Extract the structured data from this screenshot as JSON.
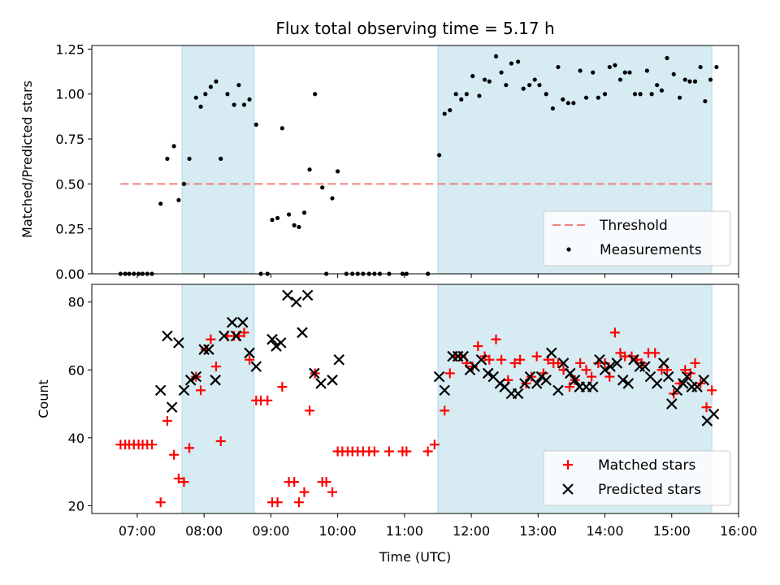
{
  "chart_data": [
    {
      "type": "scatter",
      "title": "Flux total observing time = 5.17 h",
      "ylabel": "Matched/Predicted stars",
      "ylim": [
        0,
        1.27
      ],
      "yticks": [
        "0.00",
        "0.25",
        "0.50",
        "0.75",
        "1.00",
        "1.25"
      ],
      "ytick_values": [
        0,
        0.25,
        0.5,
        0.75,
        1.0,
        1.25
      ],
      "xlim_hours": [
        6.32,
        16.0
      ],
      "shaded_intervals_hours": [
        [
          7.67,
          8.75
        ],
        [
          11.5,
          15.6
        ]
      ],
      "shade_color": "#add8e6",
      "threshold": {
        "label": "Threshold",
        "value": 0.5,
        "x_range_hours": [
          6.75,
          15.6
        ],
        "color": "#f08080"
      },
      "measurements_label": "Measurements",
      "measurements": [
        [
          6.75,
          0
        ],
        [
          6.82,
          0
        ],
        [
          6.88,
          0
        ],
        [
          6.95,
          0
        ],
        [
          7.02,
          0
        ],
        [
          7.08,
          0
        ],
        [
          7.15,
          0
        ],
        [
          7.22,
          0
        ],
        [
          7.35,
          0.39
        ],
        [
          7.45,
          0.64
        ],
        [
          7.55,
          0.71
        ],
        [
          7.62,
          0.41
        ],
        [
          7.7,
          0.5
        ],
        [
          7.78,
          0.64
        ],
        [
          7.88,
          0.98
        ],
        [
          7.95,
          0.93
        ],
        [
          8.02,
          1.0
        ],
        [
          8.1,
          1.04
        ],
        [
          8.18,
          1.07
        ],
        [
          8.25,
          0.64
        ],
        [
          8.35,
          1.0
        ],
        [
          8.45,
          0.94
        ],
        [
          8.52,
          1.05
        ],
        [
          8.6,
          0.94
        ],
        [
          8.68,
          0.97
        ],
        [
          8.78,
          0.83
        ],
        [
          8.85,
          0
        ],
        [
          8.95,
          0
        ],
        [
          9.02,
          0.3
        ],
        [
          9.1,
          0.31
        ],
        [
          9.17,
          0.81
        ],
        [
          9.27,
          0.33
        ],
        [
          9.35,
          0.27
        ],
        [
          9.42,
          0.26
        ],
        [
          9.5,
          0.34
        ],
        [
          9.58,
          0.58
        ],
        [
          9.66,
          1.0
        ],
        [
          9.77,
          0.48
        ],
        [
          9.83,
          0
        ],
        [
          9.92,
          0.42
        ],
        [
          10.0,
          0.57
        ],
        [
          10.13,
          0
        ],
        [
          10.22,
          0
        ],
        [
          10.3,
          0
        ],
        [
          10.38,
          0
        ],
        [
          10.47,
          0
        ],
        [
          10.55,
          0
        ],
        [
          10.63,
          0
        ],
        [
          10.77,
          0
        ],
        [
          10.97,
          0
        ],
        [
          11.03,
          0
        ],
        [
          11.35,
          0
        ],
        [
          11.52,
          0.66
        ],
        [
          11.6,
          0.89
        ],
        [
          11.68,
          0.91
        ],
        [
          11.77,
          1.0
        ],
        [
          11.85,
          0.97
        ],
        [
          11.93,
          1.0
        ],
        [
          12.02,
          1.1
        ],
        [
          12.12,
          0.99
        ],
        [
          12.2,
          1.08
        ],
        [
          12.27,
          1.07
        ],
        [
          12.37,
          1.21
        ],
        [
          12.45,
          1.12
        ],
        [
          12.52,
          1.05
        ],
        [
          12.6,
          1.17
        ],
        [
          12.7,
          1.18
        ],
        [
          12.78,
          1.03
        ],
        [
          12.87,
          1.05
        ],
        [
          12.95,
          1.08
        ],
        [
          13.02,
          1.05
        ],
        [
          13.12,
          1.0
        ],
        [
          13.22,
          0.92
        ],
        [
          13.3,
          1.15
        ],
        [
          13.37,
          0.97
        ],
        [
          13.45,
          0.95
        ],
        [
          13.53,
          0.95
        ],
        [
          13.63,
          1.13
        ],
        [
          13.72,
          0.98
        ],
        [
          13.82,
          1.12
        ],
        [
          13.9,
          0.98
        ],
        [
          14.0,
          1.0
        ],
        [
          14.07,
          1.15
        ],
        [
          14.15,
          1.16
        ],
        [
          14.23,
          1.08
        ],
        [
          14.3,
          1.12
        ],
        [
          14.37,
          1.12
        ],
        [
          14.45,
          1.0
        ],
        [
          14.53,
          1.0
        ],
        [
          14.63,
          1.13
        ],
        [
          14.7,
          1.0
        ],
        [
          14.78,
          1.05
        ],
        [
          14.85,
          1.02
        ],
        [
          14.93,
          1.2
        ],
        [
          15.03,
          1.11
        ],
        [
          15.12,
          0.98
        ],
        [
          15.2,
          1.08
        ],
        [
          15.27,
          1.07
        ],
        [
          15.35,
          1.07
        ],
        [
          15.43,
          1.15
        ],
        [
          15.5,
          0.96
        ],
        [
          15.58,
          1.08
        ],
        [
          15.67,
          1.15
        ]
      ]
    },
    {
      "type": "scatter",
      "ylabel": "Count",
      "xlabel": "Time (UTC)",
      "ylim": [
        17.7,
        85.2
      ],
      "yticks": [
        "20",
        "40",
        "60",
        "80"
      ],
      "ytick_values": [
        20,
        40,
        60,
        80
      ],
      "xlim_hours": [
        6.32,
        16.0
      ],
      "xticks": [
        "07:00",
        "08:00",
        "09:00",
        "10:00",
        "11:00",
        "12:00",
        "13:00",
        "14:00",
        "15:00",
        "16:00"
      ],
      "xtick_values": [
        7,
        8,
        9,
        10,
        11,
        12,
        13,
        14,
        15,
        16
      ],
      "shaded_intervals_hours": [
        [
          7.67,
          8.75
        ],
        [
          11.5,
          15.6
        ]
      ],
      "shade_color": "#add8e6",
      "series": [
        {
          "name": "Matched stars",
          "marker": "plus",
          "color": "#ff0000",
          "points": [
            [
              6.75,
              38
            ],
            [
              6.82,
              38
            ],
            [
              6.88,
              38
            ],
            [
              6.95,
              38
            ],
            [
              7.02,
              38
            ],
            [
              7.08,
              38
            ],
            [
              7.15,
              38
            ],
            [
              7.22,
              38
            ],
            [
              7.35,
              21
            ],
            [
              7.45,
              45
            ],
            [
              7.55,
              35
            ],
            [
              7.62,
              28
            ],
            [
              7.7,
              27
            ],
            [
              7.78,
              37
            ],
            [
              7.88,
              58
            ],
            [
              7.95,
              54
            ],
            [
              8.02,
              66
            ],
            [
              8.1,
              69
            ],
            [
              8.18,
              61
            ],
            [
              8.25,
              39
            ],
            [
              8.35,
              70
            ],
            [
              8.45,
              70
            ],
            [
              8.52,
              70
            ],
            [
              8.6,
              71
            ],
            [
              8.68,
              63
            ],
            [
              8.78,
              51
            ],
            [
              8.85,
              51
            ],
            [
              8.95,
              51
            ],
            [
              9.02,
              21
            ],
            [
              9.1,
              21
            ],
            [
              9.17,
              55
            ],
            [
              9.27,
              27
            ],
            [
              9.35,
              27
            ],
            [
              9.42,
              21
            ],
            [
              9.5,
              24
            ],
            [
              9.58,
              48
            ],
            [
              9.66,
              59
            ],
            [
              9.77,
              27
            ],
            [
              9.83,
              27
            ],
            [
              9.92,
              24
            ],
            [
              10.0,
              36
            ],
            [
              10.07,
              36
            ],
            [
              10.15,
              36
            ],
            [
              10.22,
              36
            ],
            [
              10.3,
              36
            ],
            [
              10.38,
              36
            ],
            [
              10.47,
              36
            ],
            [
              10.55,
              36
            ],
            [
              10.77,
              36
            ],
            [
              10.97,
              36
            ],
            [
              11.03,
              36
            ],
            [
              11.35,
              36
            ],
            [
              11.45,
              38
            ],
            [
              11.6,
              48
            ],
            [
              11.68,
              59
            ],
            [
              11.77,
              64
            ],
            [
              11.85,
              64
            ],
            [
              11.93,
              62
            ],
            [
              12.02,
              61
            ],
            [
              12.1,
              67
            ],
            [
              12.2,
              64
            ],
            [
              12.27,
              63
            ],
            [
              12.37,
              69
            ],
            [
              12.45,
              63
            ],
            [
              12.55,
              57
            ],
            [
              12.65,
              62
            ],
            [
              12.73,
              63
            ],
            [
              12.82,
              56
            ],
            [
              12.9,
              58
            ],
            [
              12.98,
              64
            ],
            [
              13.08,
              59
            ],
            [
              13.15,
              63
            ],
            [
              13.23,
              62
            ],
            [
              13.3,
              62
            ],
            [
              13.38,
              60
            ],
            [
              13.47,
              55
            ],
            [
              13.55,
              57
            ],
            [
              13.63,
              62
            ],
            [
              13.72,
              60
            ],
            [
              13.8,
              58
            ],
            [
              13.9,
              62
            ],
            [
              14.0,
              62
            ],
            [
              14.07,
              58
            ],
            [
              14.15,
              71
            ],
            [
              14.23,
              65
            ],
            [
              14.3,
              64
            ],
            [
              14.4,
              64
            ],
            [
              14.48,
              63
            ],
            [
              14.55,
              62
            ],
            [
              14.65,
              65
            ],
            [
              14.75,
              65
            ],
            [
              14.85,
              60
            ],
            [
              14.93,
              60
            ],
            [
              15.03,
              53
            ],
            [
              15.12,
              56
            ],
            [
              15.2,
              60
            ],
            [
              15.28,
              59
            ],
            [
              15.35,
              62
            ],
            [
              15.43,
              56
            ],
            [
              15.52,
              49
            ],
            [
              15.6,
              54
            ]
          ]
        },
        {
          "name": "Predicted stars",
          "marker": "x",
          "color": "#000000",
          "points": [
            [
              7.35,
              54
            ],
            [
              7.45,
              70
            ],
            [
              7.52,
              49
            ],
            [
              7.62,
              68
            ],
            [
              7.7,
              54
            ],
            [
              7.8,
              57
            ],
            [
              7.88,
              58
            ],
            [
              8.0,
              66
            ],
            [
              8.07,
              66
            ],
            [
              8.17,
              57
            ],
            [
              8.3,
              70
            ],
            [
              8.42,
              74
            ],
            [
              8.48,
              70
            ],
            [
              8.58,
              74
            ],
            [
              8.68,
              65
            ],
            [
              8.78,
              61
            ],
            [
              9.02,
              69
            ],
            [
              9.08,
              67
            ],
            [
              9.15,
              68
            ],
            [
              9.25,
              82
            ],
            [
              9.38,
              80
            ],
            [
              9.47,
              71
            ],
            [
              9.55,
              82
            ],
            [
              9.65,
              59
            ],
            [
              9.75,
              56
            ],
            [
              9.92,
              57
            ],
            [
              10.02,
              63
            ],
            [
              11.52,
              58
            ],
            [
              11.6,
              54
            ],
            [
              11.72,
              64
            ],
            [
              11.8,
              64
            ],
            [
              11.88,
              64
            ],
            [
              11.98,
              60
            ],
            [
              12.05,
              61
            ],
            [
              12.15,
              63
            ],
            [
              12.25,
              59
            ],
            [
              12.33,
              58
            ],
            [
              12.43,
              56
            ],
            [
              12.5,
              55
            ],
            [
              12.6,
              53
            ],
            [
              12.7,
              53
            ],
            [
              12.8,
              56
            ],
            [
              12.88,
              58
            ],
            [
              12.98,
              56
            ],
            [
              13.05,
              58
            ],
            [
              13.12,
              57
            ],
            [
              13.2,
              65
            ],
            [
              13.3,
              54
            ],
            [
              13.38,
              62
            ],
            [
              13.48,
              59
            ],
            [
              13.55,
              57
            ],
            [
              13.62,
              55
            ],
            [
              13.72,
              55
            ],
            [
              13.82,
              55
            ],
            [
              13.92,
              63
            ],
            [
              14.0,
              60
            ],
            [
              14.08,
              61
            ],
            [
              14.18,
              62
            ],
            [
              14.27,
              57
            ],
            [
              14.35,
              56
            ],
            [
              14.43,
              63
            ],
            [
              14.52,
              61
            ],
            [
              14.6,
              61
            ],
            [
              14.68,
              58
            ],
            [
              14.78,
              56
            ],
            [
              14.88,
              62
            ],
            [
              14.95,
              58
            ],
            [
              15.0,
              50
            ],
            [
              15.08,
              54
            ],
            [
              15.17,
              56
            ],
            [
              15.23,
              58
            ],
            [
              15.3,
              55
            ],
            [
              15.38,
              55
            ],
            [
              15.48,
              57
            ],
            [
              15.53,
              45
            ],
            [
              15.63,
              47
            ]
          ]
        }
      ]
    }
  ]
}
